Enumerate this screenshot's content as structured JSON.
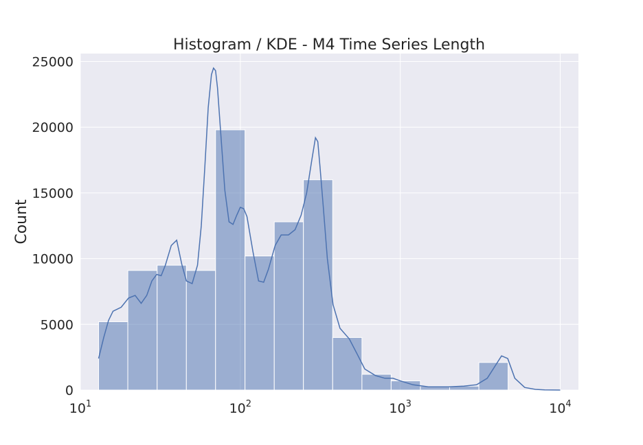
{
  "chart_data": {
    "type": "bar",
    "title": "Histogram / KDE - M4 Time Series Length",
    "xlabel": "",
    "ylabel": "Count",
    "x_scale": "log",
    "xlim": [
      10,
      13000
    ],
    "ylim": [
      0,
      25600
    ],
    "grid": true,
    "x_ticks": [
      {
        "value": 10,
        "base": "10",
        "exp": "1"
      },
      {
        "value": 100,
        "base": "10",
        "exp": "2"
      },
      {
        "value": 1000,
        "base": "10",
        "exp": "3"
      },
      {
        "value": 10000,
        "base": "10",
        "exp": "4"
      }
    ],
    "y_ticks": [
      {
        "value": 0,
        "label": "0"
      },
      {
        "value": 5000,
        "label": "5000"
      },
      {
        "value": 10000,
        "label": "10000"
      },
      {
        "value": 15000,
        "label": "15000"
      },
      {
        "value": 20000,
        "label": "20000"
      },
      {
        "value": 25000,
        "label": "25000"
      }
    ],
    "bins": [
      {
        "x0": 13,
        "x1": 19.8,
        "count": 5200
      },
      {
        "x0": 19.8,
        "x1": 30.2,
        "count": 9100
      },
      {
        "x0": 30.2,
        "x1": 46,
        "count": 9500
      },
      {
        "x0": 46,
        "x1": 70,
        "count": 9100
      },
      {
        "x0": 70,
        "x1": 107,
        "count": 19800
      },
      {
        "x0": 107,
        "x1": 163,
        "count": 10200
      },
      {
        "x0": 163,
        "x1": 248,
        "count": 12800
      },
      {
        "x0": 248,
        "x1": 378,
        "count": 16000
      },
      {
        "x0": 378,
        "x1": 576,
        "count": 4000
      },
      {
        "x0": 576,
        "x1": 877,
        "count": 1200
      },
      {
        "x0": 877,
        "x1": 1336,
        "count": 700
      },
      {
        "x0": 1336,
        "x1": 2035,
        "count": 300
      },
      {
        "x0": 2035,
        "x1": 3100,
        "count": 300
      },
      {
        "x0": 3100,
        "x1": 4722,
        "count": 2100
      }
    ],
    "kde": {
      "x": [
        13,
        14,
        15,
        16,
        18,
        20,
        22,
        24,
        26,
        28,
        30,
        32,
        34,
        37,
        40,
        43,
        46,
        50,
        54,
        57,
        60,
        63,
        66,
        68,
        70,
        72,
        75,
        80,
        85,
        90,
        95,
        100,
        105,
        110,
        120,
        130,
        140,
        150,
        165,
        180,
        200,
        220,
        240,
        260,
        280,
        295,
        305,
        315,
        330,
        350,
        380,
        420,
        480,
        540,
        600,
        700,
        800,
        900,
        1000,
        1200,
        1500,
        2000,
        2500,
        3000,
        3500,
        4000,
        4300,
        4700,
        5200,
        6000,
        7000,
        8000,
        10000
      ],
      "y": [
        2400,
        4000,
        5300,
        6000,
        6300,
        7000,
        7200,
        6600,
        7200,
        8300,
        8800,
        8700,
        9500,
        11000,
        11400,
        9600,
        8300,
        8100,
        9500,
        12500,
        17000,
        21500,
        24000,
        24500,
        24300,
        23000,
        20000,
        15200,
        12800,
        12600,
        13300,
        13900,
        13800,
        13200,
        10500,
        8300,
        8200,
        9200,
        11000,
        11800,
        11800,
        12200,
        13300,
        15000,
        17500,
        19200,
        18900,
        17000,
        14000,
        10000,
        6500,
        4700,
        3900,
        2700,
        1600,
        1100,
        900,
        900,
        700,
        400,
        250,
        250,
        300,
        400,
        900,
        2000,
        2600,
        2400,
        900,
        200,
        50,
        10,
        0
      ]
    }
  }
}
